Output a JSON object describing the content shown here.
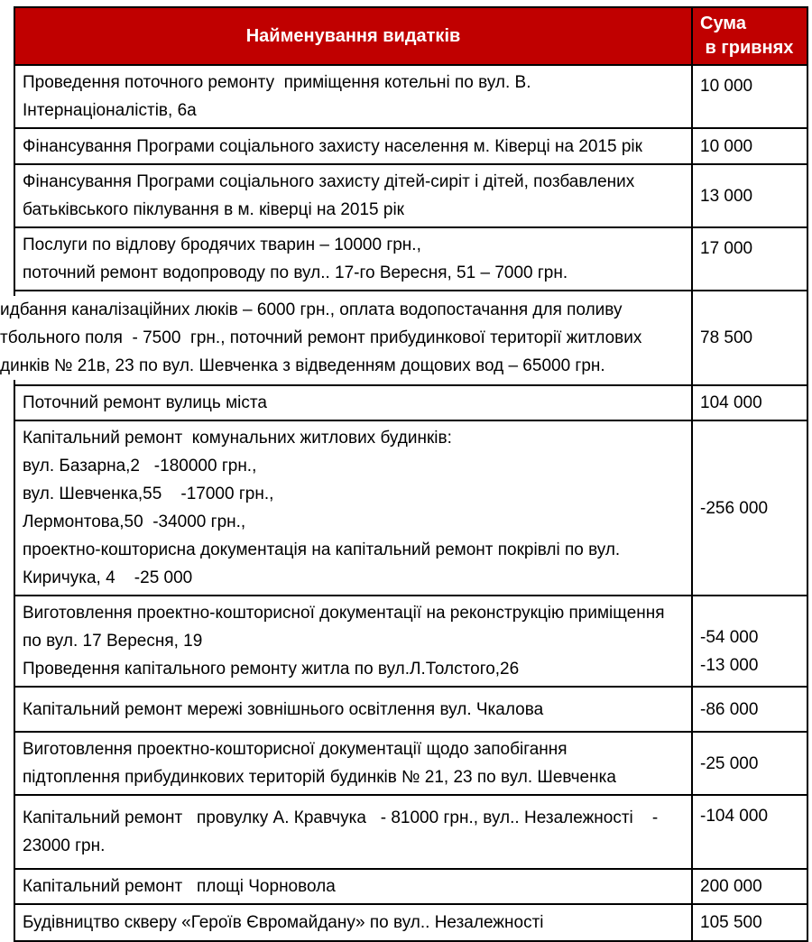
{
  "header": {
    "name_column": "Найменування видатків",
    "amount_column_lines": [
      "Сума",
      " в гривнях"
    ]
  },
  "colors": {
    "header_bg": "#c00000",
    "header_text": "#ffffff",
    "border": "#000000",
    "body_text": "#000000",
    "page_bg": "#ffffff"
  },
  "rows": [
    {
      "name_lines": [
        "Проведення поточного ремонту  приміщення котельні по вул. В.",
        "Інтернаціоналістів, 6а"
      ],
      "amount_lines": [
        "10 000"
      ]
    },
    {
      "name_lines": [
        "Фінансування Програми соціального захисту населення м. Ківерці на 2015 рік"
      ],
      "amount_lines": [
        "10 000"
      ]
    },
    {
      "name_lines": [
        "Фінансування Програми соціального захисту дітей-сиріт і дітей, позбавлених",
        "батьківського піклування в м. ківерці на 2015 рік"
      ],
      "amount_lines": [
        "13 000"
      ]
    },
    {
      "name_lines": [
        "Послуги по відлову бродячих тварин – 10000 грн.,",
        "поточний ремонт водопроводу по вул.. 17-го Вересня, 51 – 7000 грн."
      ],
      "amount_lines": [
        "17 000"
      ]
    },
    {
      "name_lines": [
        "идбання каналізаційних люків – 6000 грн., оплата водопостачання для поливу",
        "тбольного поля  - 7500  грн., поточний ремонт прибудинкової території житлових",
        "динків № 21в, 23 по вул. Шевченка з відведенням дощових вод – 65000 грн."
      ],
      "amount_lines": [
        "78 500"
      ]
    },
    {
      "name_lines": [
        "Поточний ремонт вулиць міста"
      ],
      "amount_lines": [
        "104 000"
      ]
    },
    {
      "name_lines": [
        "Капітальний ремонт  комунальних житлових будинків:",
        "вул. Базарна,2   -180000 грн.,",
        "вул. Шевченка,55    -17000 грн.,",
        "Лермонтова,50  -34000 грн.,",
        "проектно-кошторисна документація на капітальний ремонт покрівлі по вул.",
        "Киричука, 4    -25 000"
      ],
      "amount_lines": [
        "-256 000"
      ]
    },
    {
      "name_lines": [
        "Виготовлення проектно-кошторисної документації на реконструкцію приміщення",
        "по вул. 17 Вересня, 19",
        "Проведення капітального ремонту житла по вул.Л.Толстого,26"
      ],
      "amount_lines": [
        "-54 000",
        "-13 000"
      ]
    },
    {
      "name_lines": [
        "Капітальний ремонт мережі зовнішнього освітлення вул. Чкалова"
      ],
      "amount_lines": [
        "-86 000"
      ]
    },
    {
      "name_lines": [
        "Виготовлення проектно-кошторисної документації щодо запобігання",
        "підтоплення прибудинкових територій будинків № 21, 23 по вул. Шевченка"
      ],
      "amount_lines": [
        "-25 000"
      ]
    },
    {
      "name_lines": [
        "Капітальний ремонт   провулку А. Кравчука   - 81000 грн., вул.. Незалежності    -",
        "23000 грн."
      ],
      "amount_lines": [
        "-104 000"
      ]
    },
    {
      "name_lines": [
        "Капітальний ремонт   площі Чорновола"
      ],
      "amount_lines": [
        "200 000"
      ]
    },
    {
      "name_lines": [
        "Будівництво скверу «Героїв Євромайдану» по вул.. Незалежності"
      ],
      "amount_lines": [
        "105 500"
      ]
    }
  ]
}
